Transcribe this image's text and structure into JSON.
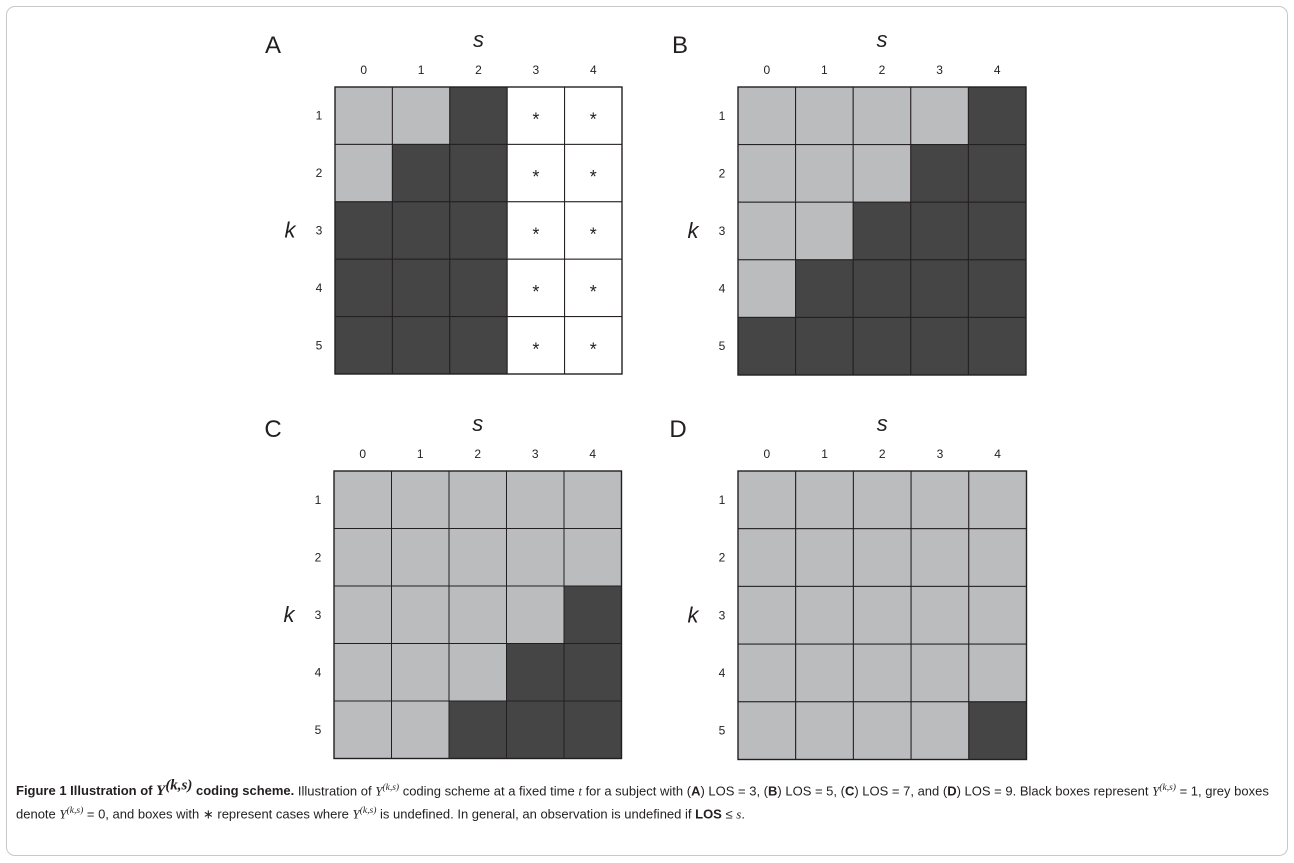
{
  "figure": {
    "colors": {
      "black_box": "#454545",
      "grey_box": "#bbbcbe",
      "undefined_box": "#ffffff",
      "grid_line": "#231f20"
    },
    "x_axis_label": "s",
    "y_axis_label": "k",
    "s_ticks": [
      "0",
      "1",
      "2",
      "3",
      "4"
    ],
    "k_ticks": [
      "1",
      "2",
      "3",
      "4",
      "5"
    ],
    "legend_codes": {
      "1": "black box: Y(k,s) = 1",
      "0": "grey box: Y(k,s) = 0",
      "*": "undefined"
    },
    "panels": [
      {
        "letter": "A",
        "LOS": "3",
        "grid": [
          [
            "0",
            "0",
            "1",
            "*",
            "*"
          ],
          [
            "0",
            "1",
            "1",
            "*",
            "*"
          ],
          [
            "1",
            "1",
            "1",
            "*",
            "*"
          ],
          [
            "1",
            "1",
            "1",
            "*",
            "*"
          ],
          [
            "1",
            "1",
            "1",
            "*",
            "*"
          ]
        ]
      },
      {
        "letter": "B",
        "LOS": "5",
        "grid": [
          [
            "0",
            "0",
            "0",
            "0",
            "1"
          ],
          [
            "0",
            "0",
            "0",
            "1",
            "1"
          ],
          [
            "0",
            "0",
            "1",
            "1",
            "1"
          ],
          [
            "0",
            "1",
            "1",
            "1",
            "1"
          ],
          [
            "1",
            "1",
            "1",
            "1",
            "1"
          ]
        ]
      },
      {
        "letter": "C",
        "LOS": "7",
        "grid": [
          [
            "0",
            "0",
            "0",
            "0",
            "0"
          ],
          [
            "0",
            "0",
            "0",
            "0",
            "0"
          ],
          [
            "0",
            "0",
            "0",
            "0",
            "1"
          ],
          [
            "0",
            "0",
            "0",
            "1",
            "1"
          ],
          [
            "0",
            "0",
            "1",
            "1",
            "1"
          ]
        ]
      },
      {
        "letter": "D",
        "LOS": "9",
        "grid": [
          [
            "0",
            "0",
            "0",
            "0",
            "0"
          ],
          [
            "0",
            "0",
            "0",
            "0",
            "0"
          ],
          [
            "0",
            "0",
            "0",
            "0",
            "0"
          ],
          [
            "0",
            "0",
            "0",
            "0",
            "0"
          ],
          [
            "0",
            "0",
            "0",
            "0",
            "1"
          ]
        ]
      }
    ]
  },
  "caption": {
    "label": "Figure 1 Illustration of",
    "label_math": "Y",
    "label_sup": "(k,s)",
    "label_end": "coding scheme.",
    "t1": "Illustration of",
    "m_Y": "Y",
    "m_ks": "(k,s)",
    "t2": "coding scheme at a fixed time",
    "m_t": "t",
    "t3": "for a subject with (",
    "A": "A",
    "t4": ") LOS = 3, (",
    "B": "B",
    "t5": ") LOS = 5, (",
    "C": "C",
    "t6": ") LOS = 7, and (",
    "D": "D",
    "t7": ") LOS = 9. Black boxes represent",
    "t8": "= 1, grey boxes denote",
    "t9": "= 0, and boxes with ∗ represent cases where",
    "t10": "is undefined. In general, an observation is undefined if",
    "los": "LOS",
    "le": "≤",
    "m_s": "s",
    "end": "."
  }
}
